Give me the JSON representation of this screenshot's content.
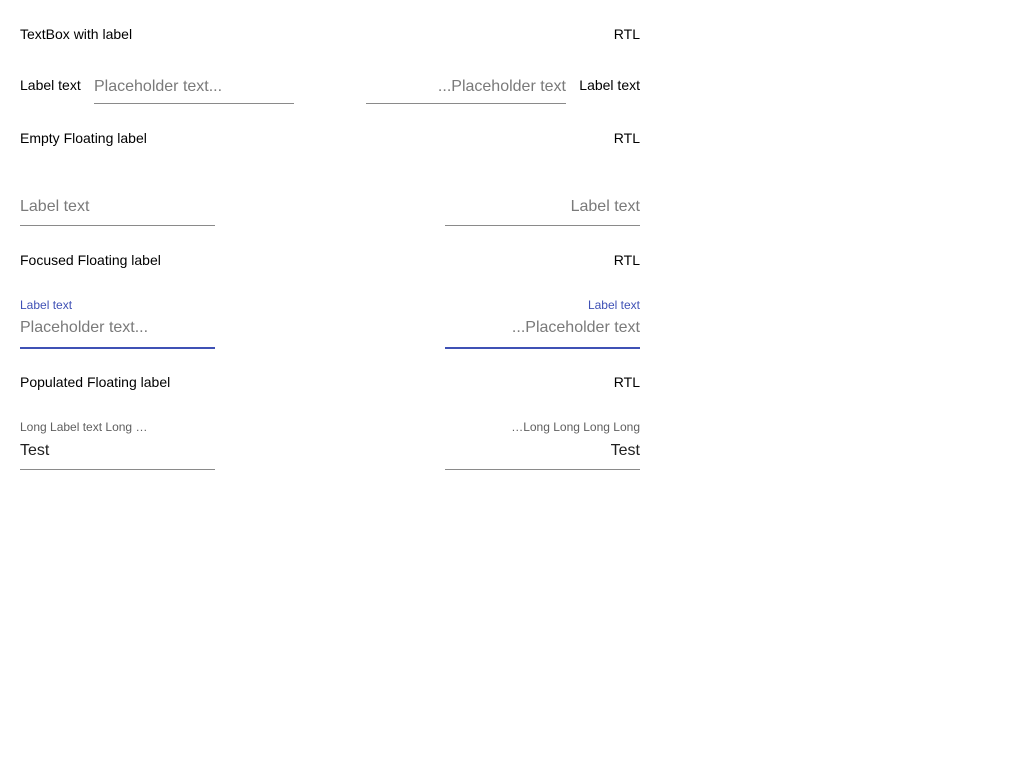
{
  "sections": {
    "textbox_with_label": {
      "title": "TextBox with label",
      "rtl_tag": "RTL",
      "ltr": {
        "label": "Label text",
        "placeholder": "Placeholder text..."
      },
      "rtl": {
        "label": "Label text",
        "placeholder": "Placeholder text..."
      }
    },
    "empty_floating": {
      "title": "Empty Floating label",
      "rtl_tag": "RTL",
      "ltr": {
        "label": "Label text"
      },
      "rtl": {
        "label": "Label text"
      }
    },
    "focused_floating": {
      "title": "Focused Floating label",
      "rtl_tag": "RTL",
      "ltr": {
        "label": "Label text",
        "placeholder": "Placeholder text..."
      },
      "rtl": {
        "label": "Label text",
        "placeholder": "Placeholder text..."
      }
    },
    "populated_floating": {
      "title": "Populated Floating label",
      "rtl_tag": "RTL",
      "ltr": {
        "label": "Long Label text Long Long Long Long",
        "value": "Test"
      },
      "rtl": {
        "label": "Long Label text Long Long Long Long",
        "value": "Test"
      }
    }
  },
  "colors": {
    "accent": "#3f51b5",
    "underline": "#8a8a8a",
    "placeholder": "#7a7a7a",
    "floating_label": "#5f5f5f"
  }
}
